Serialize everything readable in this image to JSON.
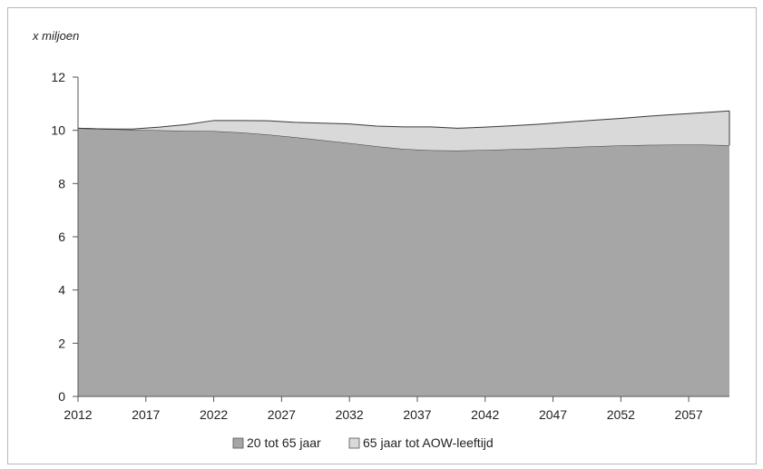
{
  "chart_data": {
    "type": "area",
    "stacked": true,
    "title": "",
    "xlabel": "",
    "ylabel": "x miljoen",
    "ylim": [
      0,
      12
    ],
    "yticks": [
      0,
      2,
      4,
      6,
      8,
      10,
      12
    ],
    "xticks": [
      "2012",
      "2017",
      "2022",
      "2027",
      "2032",
      "2037",
      "2042",
      "2047",
      "2052",
      "2057"
    ],
    "x": [
      2012,
      2014,
      2016,
      2018,
      2020,
      2022,
      2024,
      2026,
      2028,
      2030,
      2032,
      2034,
      2036,
      2038,
      2040,
      2042,
      2044,
      2046,
      2048,
      2050,
      2052,
      2054,
      2056,
      2058,
      2060
    ],
    "grid": false,
    "legend": "bottom",
    "series": [
      {
        "name": "20 tot 65 jaar",
        "color": "#a6a6a6",
        "values": [
          10.08,
          10.05,
          10.02,
          10.0,
          9.98,
          9.97,
          9.92,
          9.84,
          9.74,
          9.63,
          9.52,
          9.4,
          9.3,
          9.25,
          9.24,
          9.26,
          9.29,
          9.32,
          9.36,
          9.4,
          9.43,
          9.45,
          9.46,
          9.46,
          9.44
        ]
      },
      {
        "name": "65 jaar tot AOW-leeftijd",
        "color": "#d9d9d9",
        "values": [
          0.0,
          0.0,
          0.03,
          0.12,
          0.24,
          0.4,
          0.45,
          0.52,
          0.56,
          0.64,
          0.72,
          0.76,
          0.83,
          0.88,
          0.84,
          0.86,
          0.88,
          0.91,
          0.95,
          0.98,
          1.02,
          1.08,
          1.14,
          1.2,
          1.29
        ]
      }
    ]
  }
}
